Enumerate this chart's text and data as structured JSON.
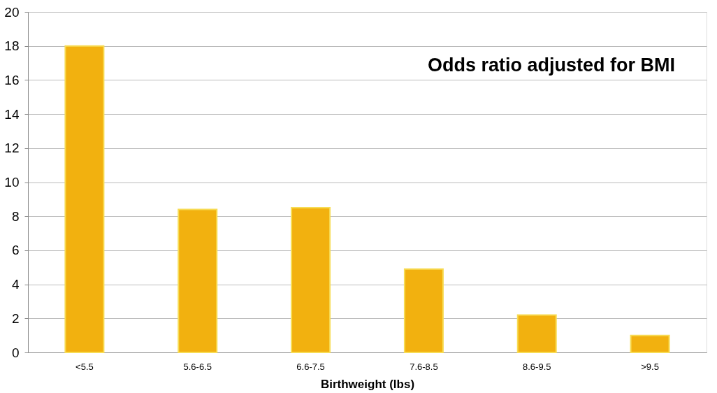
{
  "chart_data": {
    "type": "bar",
    "title": "Odds ratio adjusted for BMI",
    "xlabel": "Birthweight (lbs)",
    "categories": [
      "<5.5",
      "5.6-6.5",
      "6.6-7.5",
      "7.6-8.5",
      "8.6-9.5",
      ">9.5"
    ],
    "values": [
      18,
      8.4,
      8.5,
      4.9,
      2.2,
      1.0
    ],
    "color": "#f2b10f",
    "ylim": [
      0,
      20
    ],
    "yticks": [
      0,
      2,
      4,
      6,
      8,
      10,
      12,
      14,
      16,
      18,
      20
    ],
    "grid": "y"
  }
}
